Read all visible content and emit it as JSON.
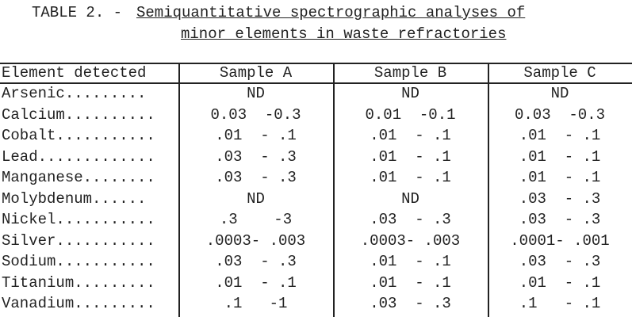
{
  "title": {
    "label": "TABLE 2. -",
    "lines": [
      "Semiquantitative spectrographic analyses of",
      "minor elements in waste refractories"
    ]
  },
  "table": {
    "header": [
      "Element detected",
      "Sample A",
      "Sample B",
      "Sample C"
    ],
    "rows": [
      [
        "Arsenic.........",
        "ND",
        "ND",
        "ND"
      ],
      [
        "Calcium..........",
        "0.03  -0.3",
        "0.01  -0.1",
        "0.03  -0.3"
      ],
      [
        "Cobalt...........",
        ".01  - .1",
        ".01  - .1",
        ".01  - .1"
      ],
      [
        "Lead.............",
        ".03  - .3",
        ".01  - .1",
        ".01  - .1"
      ],
      [
        "Manganese........",
        ".03  - .3",
        ".01  - .1",
        ".01  - .1"
      ],
      [
        "Molybdenum......",
        "ND",
        "ND",
        ".03  - .3"
      ],
      [
        "Nickel...........",
        ".3    -3",
        ".03  - .3",
        ".03  - .3"
      ],
      [
        "Silver...........",
        ".0003- .003",
        ".0003- .003",
        ".0001- .001"
      ],
      [
        "Sodium...........",
        ".03  - .3",
        ".01  - .1",
        ".03  - .3"
      ],
      [
        "Titanium.........",
        ".01  - .1",
        ".01  - .1",
        ".01  - .1"
      ],
      [
        "Vanadium.........",
        ".1   -1",
        ".03  - .3",
        ".1   - .1"
      ]
    ]
  }
}
